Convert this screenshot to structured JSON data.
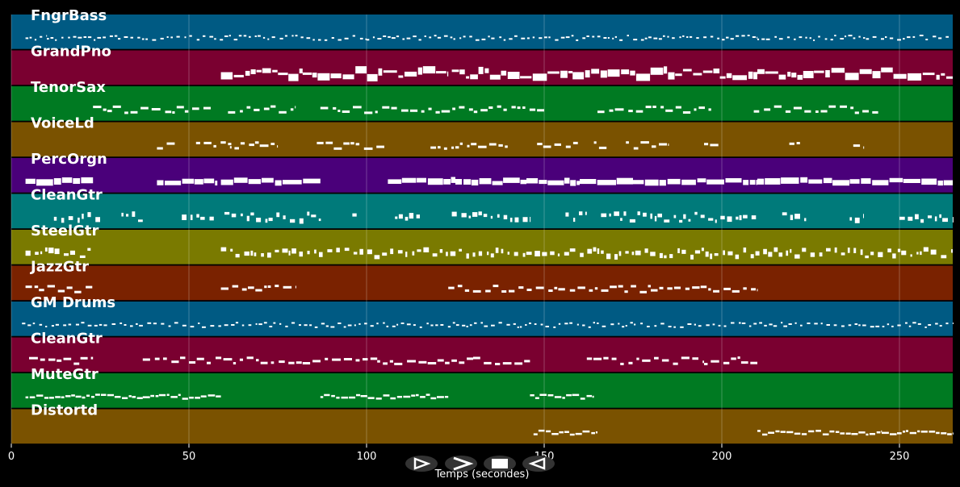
{
  "tracks": [
    {
      "name": "FngrBass",
      "color": "#005a83",
      "segments": [
        [
          4,
          10
        ],
        [
          10,
          30
        ],
        [
          30,
          60
        ],
        [
          60,
          100
        ],
        [
          100,
          150
        ],
        [
          150,
          210
        ],
        [
          210,
          265
        ]
      ],
      "style": "thin-dots"
    },
    {
      "name": "GrandPno",
      "color": "#7a0030",
      "segments": [
        [
          59,
          82
        ],
        [
          82,
          123
        ],
        [
          124,
          158
        ],
        [
          158,
          210
        ],
        [
          210,
          265
        ]
      ],
      "style": "chords"
    },
    {
      "name": "TenorSax",
      "color": "#007a22",
      "segments": [
        [
          23,
          57
        ],
        [
          61,
          80
        ],
        [
          87,
          125
        ],
        [
          126,
          150
        ],
        [
          165,
          197
        ],
        [
          209,
          244
        ]
      ],
      "style": "phrases"
    },
    {
      "name": "VoiceLd",
      "color": "#7a5200",
      "segments": [
        [
          41,
          46
        ],
        [
          52,
          62
        ],
        [
          61,
          75
        ],
        [
          86,
          105
        ],
        [
          118,
          140
        ],
        [
          148,
          160
        ],
        [
          164,
          168
        ],
        [
          173,
          185
        ],
        [
          195,
          200
        ],
        [
          219,
          222
        ],
        [
          237,
          240
        ]
      ],
      "style": "phrases"
    },
    {
      "name": "PercOrgn",
      "color": "#4a007a",
      "segments": [
        [
          4,
          23
        ],
        [
          41,
          58
        ],
        [
          59,
          87
        ],
        [
          106,
          125
        ],
        [
          125,
          145
        ],
        [
          145,
          160
        ],
        [
          160,
          175
        ],
        [
          175,
          210
        ],
        [
          210,
          265
        ]
      ],
      "style": "blocks"
    },
    {
      "name": "CleanGtr",
      "color": "#007a7a",
      "segments": [
        [
          12,
          25
        ],
        [
          31,
          37
        ],
        [
          48,
          57
        ],
        [
          60,
          88
        ],
        [
          96,
          98
        ],
        [
          108,
          115
        ],
        [
          124,
          146
        ],
        [
          156,
          162
        ],
        [
          166,
          210
        ],
        [
          217,
          224
        ],
        [
          236,
          240
        ],
        [
          250,
          265
        ]
      ],
      "style": "dense"
    },
    {
      "name": "SteelGtr",
      "color": "#7a7a00",
      "segments": [
        [
          4,
          23
        ],
        [
          59,
          265
        ]
      ],
      "style": "dense"
    },
    {
      "name": "JazzGtr",
      "color": "#7a2200",
      "segments": [
        [
          4,
          23
        ],
        [
          59,
          80
        ],
        [
          123,
          140
        ],
        [
          140,
          180
        ],
        [
          180,
          210
        ]
      ],
      "style": "phrases"
    },
    {
      "name": "GM Drums",
      "color": "#005a83",
      "segments": [
        [
          3,
          265
        ]
      ],
      "style": "thin-dots"
    },
    {
      "name": "CleanGtr",
      "color": "#7a0030",
      "segments": [
        [
          5,
          23
        ],
        [
          37,
          55
        ],
        [
          55,
          103
        ],
        [
          103,
          130
        ],
        [
          130,
          146
        ],
        [
          162,
          195
        ],
        [
          195,
          210
        ]
      ],
      "style": "phrases"
    },
    {
      "name": "MuteGtr",
      "color": "#007a22",
      "segments": [
        [
          4,
          37
        ],
        [
          37,
          59
        ],
        [
          87,
          123
        ],
        [
          146,
          164
        ]
      ],
      "style": "line"
    },
    {
      "name": "Distortd",
      "color": "#7a5200",
      "segments": [
        [
          147,
          165
        ],
        [
          210,
          245
        ],
        [
          245,
          265
        ]
      ],
      "style": "line"
    }
  ],
  "axis": {
    "title": "Temps (secondes)",
    "xlim": [
      0,
      265
    ],
    "ticks": [
      0,
      50,
      100,
      150,
      200,
      250
    ],
    "tick_labels": [
      "0",
      "50",
      "100",
      "150",
      "200",
      "250"
    ]
  },
  "player": {
    "buttons": [
      {
        "name": "play-button",
        "icon": "play-icon"
      },
      {
        "name": "next-button",
        "icon": "chevron-right-icon"
      },
      {
        "name": "stop-button",
        "icon": "stop-icon"
      },
      {
        "name": "previous-button",
        "icon": "back-icon"
      }
    ]
  }
}
